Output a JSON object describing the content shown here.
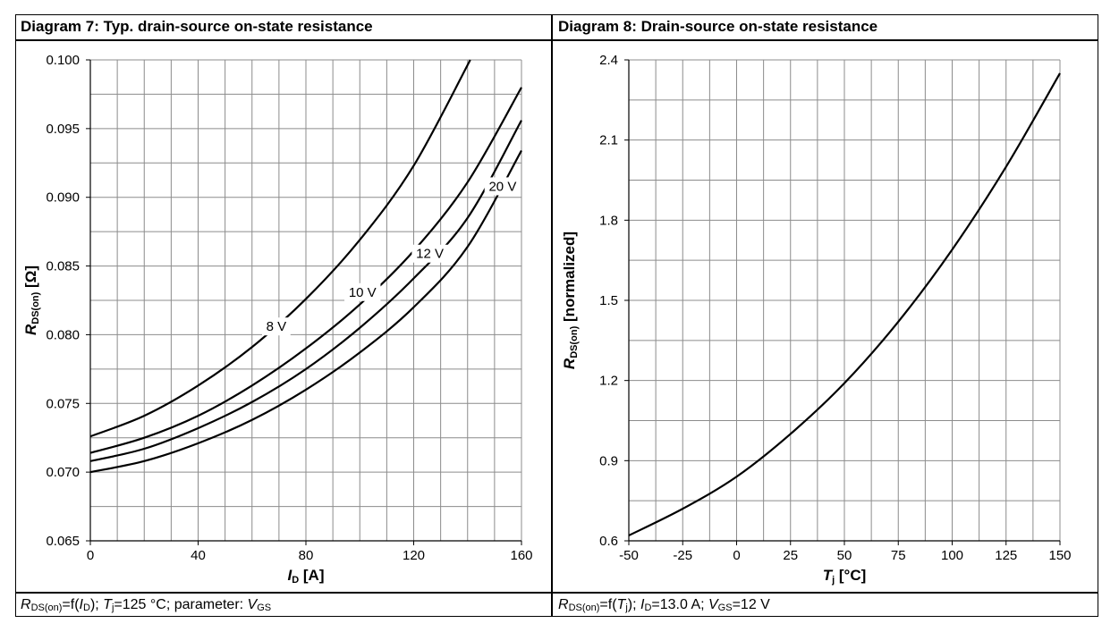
{
  "panels": {
    "left": {
      "title": "Diagram 7: Typ. drain-source on-state resistance",
      "caption": {
        "a": "R",
        "a_sub": "DS(on)",
        "b": "=f(",
        "c": "I",
        "c_sub": "D",
        "d": "); ",
        "e": "T",
        "e_sub": "j",
        "f": "=125 °C; parameter: ",
        "g": "V",
        "g_sub": "GS"
      }
    },
    "right": {
      "title": "Diagram 8: Drain-source on-state resistance",
      "caption": {
        "a": "R",
        "a_sub": "DS(on)",
        "b": "=f(",
        "c": "T",
        "c_sub": "j",
        "d": "); ",
        "e": "I",
        "e_sub": "D",
        "f": "=13.0 A; ",
        "g": "V",
        "g_sub": "GS",
        "h": "=12 V"
      }
    }
  },
  "chart_data": [
    {
      "type": "line",
      "title": "Diagram 7: Typ. drain-source on-state resistance",
      "xlabel": "I_D [A]",
      "xlabel_main": "I",
      "xlabel_sub": "D",
      "xlabel_unit": " [A]",
      "ylabel": "R_DS(on) [Ω]",
      "ylabel_main": "R",
      "ylabel_sub": "DS(on)",
      "ylabel_unit": " [Ω]",
      "xlim": [
        0,
        160
      ],
      "ylim": [
        0.065,
        0.1
      ],
      "xticks": [
        0,
        40,
        80,
        120,
        160
      ],
      "xtick_labels": [
        "0",
        "40",
        "80",
        "120",
        "160"
      ],
      "yticks": [
        0.065,
        0.07,
        0.075,
        0.08,
        0.085,
        0.09,
        0.095,
        0.1
      ],
      "ytick_labels": [
        "0.065",
        "0.070",
        "0.075",
        "0.080",
        "0.085",
        "0.090",
        "0.095",
        "0.100"
      ],
      "x_minor_step": 10,
      "y_minor_step": 0.0025,
      "grid": true,
      "series": [
        {
          "name": "8 V",
          "x": [
            0,
            20,
            40,
            60,
            80,
            100,
            120,
            141
          ],
          "values": [
            0.0726,
            0.0741,
            0.0763,
            0.0791,
            0.0826,
            0.0869,
            0.0923,
            0.1
          ]
        },
        {
          "name": "10 V",
          "x": [
            0,
            20,
            40,
            60,
            80,
            100,
            120,
            140,
            160
          ],
          "values": [
            0.0714,
            0.0725,
            0.0741,
            0.0763,
            0.079,
            0.0822,
            0.0861,
            0.0911,
            0.098
          ]
        },
        {
          "name": "12 V",
          "x": [
            0,
            20,
            40,
            60,
            80,
            100,
            120,
            140,
            160
          ],
          "values": [
            0.0708,
            0.0717,
            0.0732,
            0.0751,
            0.0775,
            0.0805,
            0.0841,
            0.0885,
            0.0956
          ]
        },
        {
          "name": "20 V",
          "x": [
            0,
            20,
            40,
            60,
            80,
            100,
            120,
            140,
            160
          ],
          "values": [
            0.07,
            0.0708,
            0.0721,
            0.0738,
            0.076,
            0.0787,
            0.082,
            0.0864,
            0.0934
          ]
        }
      ],
      "series_labels": [
        {
          "text": "8 V",
          "x": 69,
          "y": 0.0806
        },
        {
          "text": "10 V",
          "x": 101,
          "y": 0.0831
        },
        {
          "text": "12 V",
          "x": 126,
          "y": 0.0859
        },
        {
          "text": "20 V",
          "x": 153,
          "y": 0.0908
        }
      ]
    },
    {
      "type": "line",
      "title": "Diagram 8: Drain-source on-state resistance",
      "xlabel": "T_j [°C]",
      "xlabel_main": "T",
      "xlabel_sub": "j",
      "xlabel_unit": " [°C]",
      "ylabel": "R_DS(on) [normalized]",
      "ylabel_main": "R",
      "ylabel_sub": "DS(on)",
      "ylabel_unit": " [normalized]",
      "xlim": [
        -50,
        150
      ],
      "ylim": [
        0.6,
        2.4
      ],
      "xticks": [
        -50,
        -25,
        0,
        25,
        50,
        75,
        100,
        125,
        150
      ],
      "xtick_labels": [
        "-50",
        "-25",
        "0",
        "25",
        "50",
        "75",
        "100",
        "125",
        "150"
      ],
      "yticks": [
        0.6,
        0.9,
        1.2,
        1.5,
        1.8,
        2.1,
        2.4
      ],
      "ytick_labels": [
        "0.6",
        "0.9",
        "1.2",
        "1.5",
        "1.8",
        "2.1",
        "2.4"
      ],
      "x_minor_step": 12.5,
      "y_minor_step": 0.15,
      "grid": true,
      "series": [
        {
          "name": "R_DS(on) normalized",
          "x": [
            -50,
            -25,
            0,
            25,
            50,
            75,
            100,
            125,
            150
          ],
          "values": [
            0.62,
            0.72,
            0.84,
            1.0,
            1.19,
            1.42,
            1.69,
            2.0,
            2.35
          ]
        }
      ],
      "series_labels": []
    }
  ]
}
